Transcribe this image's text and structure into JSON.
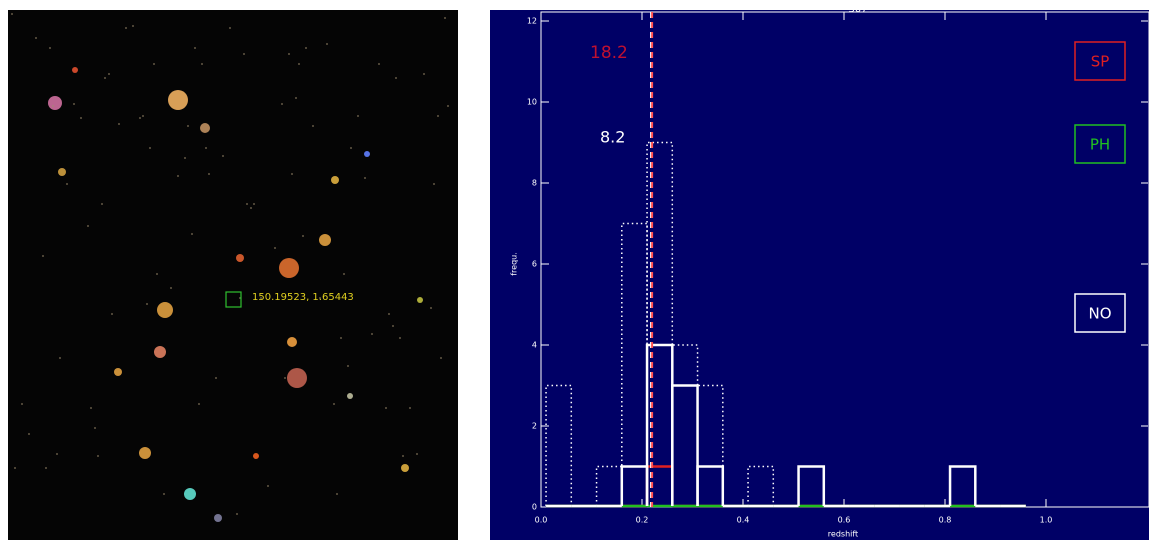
{
  "image": {
    "label": "150.19523, 1.65443"
  },
  "chart_data": {
    "type": "histogram",
    "title": "307",
    "x_label": "redshift",
    "y_label": "frequ.",
    "bins": [
      0.01,
      0.06,
      0.11,
      0.16,
      0.21,
      0.26,
      0.31,
      0.36,
      0.41,
      0.46,
      0.51,
      0.56,
      0.61,
      0.66,
      0.71,
      0.76,
      0.81,
      0.86,
      0.91,
      0.96
    ],
    "series": [
      {
        "color": "#ffffff",
        "dash": "dotted",
        "values": [
          3,
          0,
          1,
          7,
          9,
          4,
          3,
          0,
          1,
          0,
          1,
          0,
          0,
          0,
          0,
          0,
          1,
          0,
          0
        ]
      },
      {
        "name": "SP",
        "color": "#e02020",
        "dash": "solid",
        "values": [
          0,
          0,
          0,
          0,
          1,
          0,
          0,
          0,
          0,
          0,
          0,
          0,
          0,
          0,
          0,
          0,
          0,
          0,
          0
        ]
      },
      {
        "name": "PH",
        "color": "#20c020",
        "dash": "solid",
        "values": [
          0,
          0,
          0,
          0,
          0,
          0,
          0,
          0,
          0,
          0,
          0,
          0,
          0,
          0,
          0,
          0,
          0,
          0,
          0
        ]
      },
      {
        "name": "NO",
        "color": "#ffffff",
        "dash": "solid",
        "values": [
          0,
          0,
          0,
          1,
          4,
          3,
          1,
          0,
          0,
          0,
          1,
          0,
          0,
          0,
          0,
          0,
          1,
          0,
          0
        ]
      }
    ],
    "vlines": [
      {
        "value": 0.218,
        "color": "#ffffff"
      },
      {
        "value": 0.22,
        "color": "#ff5050"
      }
    ],
    "annotations": [
      {
        "text": "18.2",
        "color": "#c01030"
      },
      {
        "text": "8.2",
        "color": "#ffffff"
      }
    ],
    "xlim": [
      0,
      1.2
    ],
    "ylim": [
      0,
      12
    ],
    "xticks": [
      {
        "value": 0,
        "label": "0.0"
      },
      0.2,
      0.4,
      0.6,
      0.8,
      {
        "value": 1,
        "label": "1.0"
      }
    ],
    "yticks": [
      0,
      2,
      4,
      6,
      8,
      10,
      12
    ],
    "background": "#000066",
    "legend": "right"
  }
}
